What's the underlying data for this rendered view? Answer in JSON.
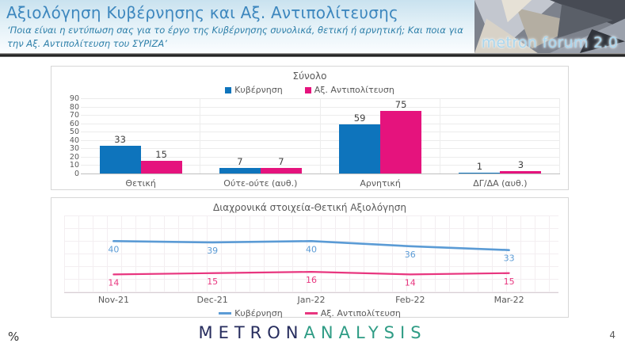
{
  "header": {
    "title": "Αξιολόγηση Κυβέρνησης και Αξ. Αντιπολίτευσης",
    "subtitle": "‘Ποια είναι η εντύπωση σας για το έργο της Κυβέρνησης συνολικά, θετική ή αρνητική; Και ποια για την Αξ. Αντιπολίτευση του ΣΥΡΙΖΑ’",
    "logo_text": "metron forum 2.0"
  },
  "footer": {
    "percent_label": "%",
    "brand_metron": "METRON",
    "brand_analysis": "ANALYSIS",
    "page_number": "4"
  },
  "colors": {
    "government_bar": "#0e74bc",
    "opposition_bar": "#e5137d",
    "government_line": "#5b9bd5",
    "opposition_line": "#e8367f",
    "header_title": "#3d87be",
    "header_subtitle": "#2d7fa9"
  },
  "chart_data": [
    {
      "type": "bar",
      "title": "Σύνολο",
      "categories": [
        "Θετική",
        "Ούτε-ούτε (αυθ.)",
        "Αρνητική",
        "ΔΓ/ΔΑ (αυθ.)"
      ],
      "series": [
        {
          "name": "Κυβέρνηση",
          "color": "#0e74bc",
          "values": [
            33,
            7,
            59,
            1
          ]
        },
        {
          "name": "Αξ. Αντιπολίτευση",
          "color": "#e5137d",
          "values": [
            15,
            7,
            75,
            3
          ]
        }
      ],
      "ylim": [
        0,
        90
      ],
      "ytick_step": 10,
      "grid": true,
      "legend_position": "top",
      "unit": "%"
    },
    {
      "type": "line",
      "title": "Διαχρονικά στοιχεία-Θετική Αξιολόγηση",
      "categories": [
        "Nov-21",
        "Dec-21",
        "Jan-22",
        "Feb-22",
        "Mar-22"
      ],
      "series": [
        {
          "name": "Κυβέρνηση",
          "color": "#5b9bd5",
          "values": [
            40,
            39,
            40,
            36,
            33
          ]
        },
        {
          "name": "Αξ. Αντιπολίτευση",
          "color": "#e8367f",
          "values": [
            14,
            15,
            16,
            14,
            15
          ]
        }
      ],
      "ylim": [
        0,
        60
      ],
      "grid": true,
      "legend_position": "bottom",
      "unit": "%"
    }
  ]
}
